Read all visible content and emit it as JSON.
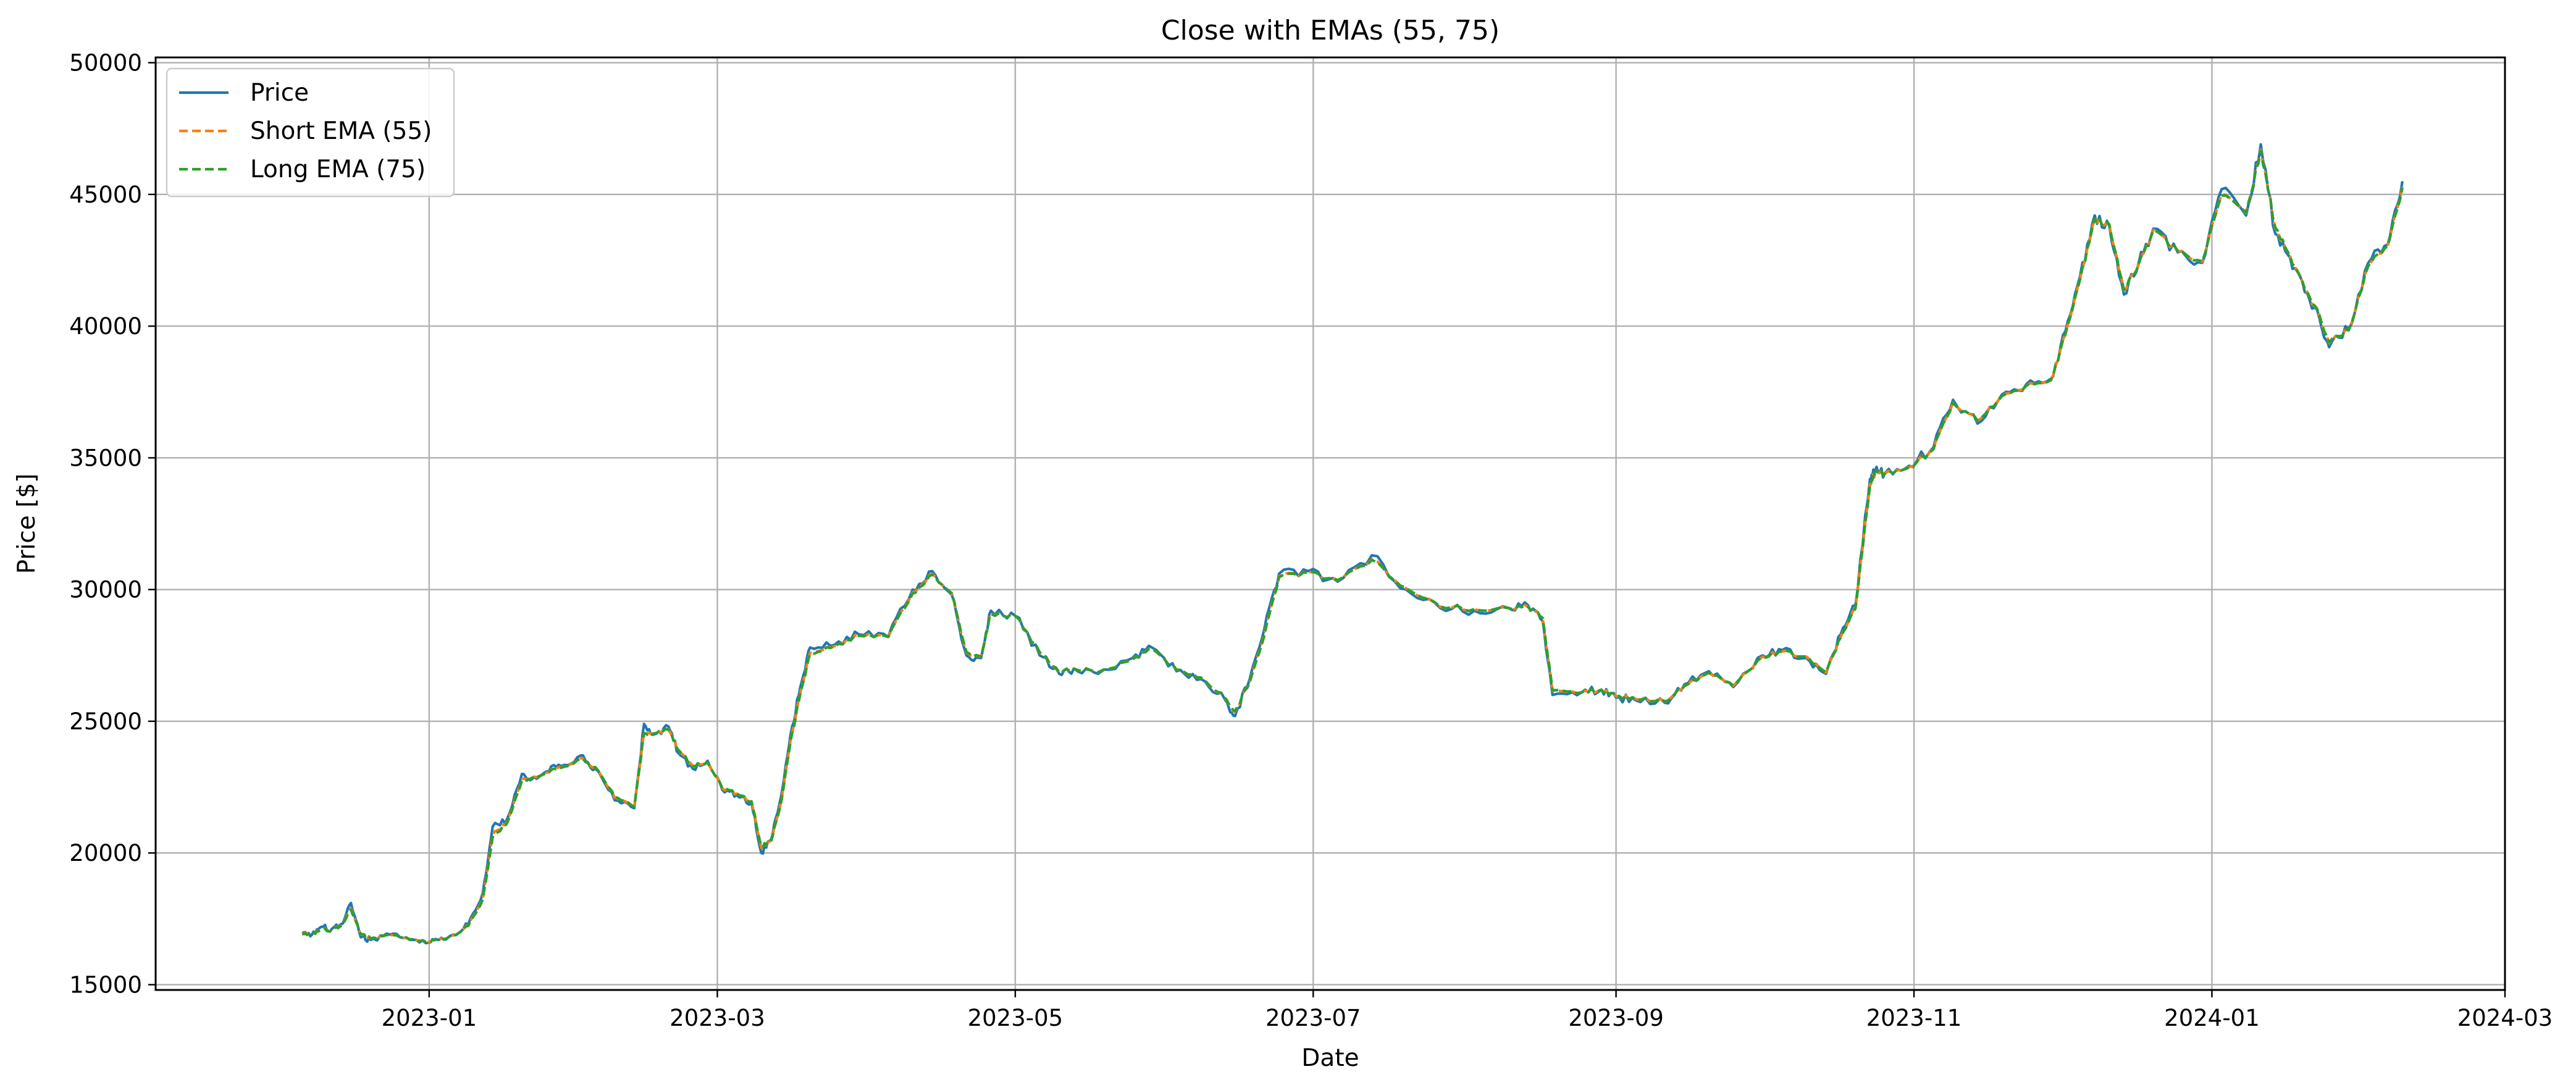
{
  "chart_data": {
    "type": "line",
    "title": "Close with EMAs (55, 75)",
    "xlabel": "Date",
    "ylabel": "Price [$]",
    "x_ticks": [
      "2023-01",
      "2023-03",
      "2023-05",
      "2023-07",
      "2023-09",
      "2023-11",
      "2024-01",
      "2024-03"
    ],
    "y_ticks": [
      15000,
      20000,
      25000,
      30000,
      35000,
      40000,
      45000,
      50000
    ],
    "ylim": [
      14800,
      50200
    ],
    "xlim": [
      "2022-11-06",
      "2024-03-01"
    ],
    "grid": true,
    "legend_position": "top-left",
    "colors": {
      "price": "#1f77b4",
      "short_ema": "#ff7f0e",
      "long_ema": "#2ca02c",
      "grid": "#b0b0b0"
    },
    "x": [
      "2022-12-06",
      "2022-12-08",
      "2022-12-10",
      "2022-12-12",
      "2022-12-14",
      "2022-12-16",
      "2022-12-18",
      "2022-12-20",
      "2022-12-24",
      "2022-12-28",
      "2023-01-01",
      "2023-01-03",
      "2023-01-06",
      "2023-01-09",
      "2023-01-12",
      "2023-01-14",
      "2023-01-17",
      "2023-01-20",
      "2023-01-22",
      "2023-01-25",
      "2023-01-28",
      "2023-02-01",
      "2023-02-04",
      "2023-02-08",
      "2023-02-12",
      "2023-02-14",
      "2023-02-16",
      "2023-02-19",
      "2023-02-21",
      "2023-02-24",
      "2023-02-27",
      "2023-03-02",
      "2023-03-05",
      "2023-03-08",
      "2023-03-10",
      "2023-03-12",
      "2023-03-14",
      "2023-03-16",
      "2023-03-18",
      "2023-03-20",
      "2023-03-25",
      "2023-03-30",
      "2023-04-05",
      "2023-04-10",
      "2023-04-14",
      "2023-04-18",
      "2023-04-21",
      "2023-04-24",
      "2023-04-26",
      "2023-05-01",
      "2023-05-06",
      "2023-05-10",
      "2023-05-13",
      "2023-05-18",
      "2023-05-25",
      "2023-05-29",
      "2023-06-03",
      "2023-06-08",
      "2023-06-13",
      "2023-06-15",
      "2023-06-18",
      "2023-06-21",
      "2023-06-24",
      "2023-06-30",
      "2023-07-06",
      "2023-07-13",
      "2023-07-20",
      "2023-07-27",
      "2023-08-03",
      "2023-08-10",
      "2023-08-14",
      "2023-08-17",
      "2023-08-19",
      "2023-08-25",
      "2023-08-29",
      "2023-09-01",
      "2023-09-05",
      "2023-09-11",
      "2023-09-15",
      "2023-09-20",
      "2023-09-25",
      "2023-10-01",
      "2023-10-05",
      "2023-10-10",
      "2023-10-14",
      "2023-10-17",
      "2023-10-20",
      "2023-10-23",
      "2023-10-24",
      "2023-10-26",
      "2023-10-31",
      "2023-11-05",
      "2023-11-09",
      "2023-11-14",
      "2023-11-19",
      "2023-11-24",
      "2023-11-29",
      "2023-12-02",
      "2023-12-05",
      "2023-12-08",
      "2023-12-11",
      "2023-12-14",
      "2023-12-17",
      "2023-12-20",
      "2023-12-25",
      "2023-12-30",
      "2024-01-03",
      "2024-01-08",
      "2024-01-11",
      "2024-01-14",
      "2024-01-17",
      "2024-01-20",
      "2024-01-23",
      "2024-01-25",
      "2024-01-29",
      "2024-02-02",
      "2024-02-06",
      "2024-02-09"
    ],
    "series": [
      {
        "name": "Price",
        "style": "solid",
        "values": [
          17000,
          16900,
          17200,
          17100,
          17300,
          18100,
          16800,
          16700,
          16900,
          16700,
          16600,
          16700,
          16900,
          17300,
          18500,
          21000,
          21300,
          23000,
          22800,
          23100,
          23300,
          23700,
          23200,
          22000,
          21700,
          24900,
          24500,
          24800,
          23800,
          23200,
          23500,
          22400,
          22200,
          21900,
          20000,
          20500,
          22100,
          24500,
          26300,
          27800,
          27900,
          28300,
          28200,
          30000,
          30700,
          29800,
          27500,
          27400,
          29200,
          29000,
          27500,
          26800,
          27000,
          26800,
          27400,
          27800,
          26900,
          26600,
          25800,
          25200,
          26600,
          28500,
          30600,
          30700,
          30300,
          31300,
          30000,
          29300,
          29200,
          29300,
          29400,
          28800,
          26000,
          26100,
          26200,
          25900,
          25800,
          25700,
          26400,
          26900,
          26300,
          27500,
          27700,
          27400,
          26800,
          28300,
          29400,
          34200,
          34500,
          34400,
          34700,
          35400,
          37200,
          36300,
          37400,
          37800,
          38000,
          39800,
          41900,
          44200,
          43800,
          41200,
          42400,
          43700,
          42800,
          42400,
          45200,
          44200,
          46900,
          43500,
          42600,
          41300,
          40300,
          39200,
          39900,
          42400,
          43100,
          45500
        ]
      },
      {
        "name": "Short EMA (55)",
        "style": "dashed",
        "values": [
          16950,
          16920,
          17100,
          17080,
          17250,
          17900,
          16900,
          16750,
          16880,
          16720,
          16620,
          16700,
          16880,
          17250,
          18300,
          20700,
          21200,
          22800,
          22850,
          23050,
          23250,
          23600,
          23250,
          22100,
          21750,
          24600,
          24550,
          24700,
          23900,
          23300,
          23450,
          22450,
          22250,
          21950,
          20200,
          20450,
          21900,
          24300,
          26100,
          27600,
          27850,
          28250,
          28200,
          29900,
          30600,
          29850,
          27600,
          27450,
          29100,
          29000,
          27600,
          26850,
          27000,
          26850,
          27350,
          27750,
          26950,
          26650,
          25850,
          25350,
          26500,
          28300,
          30500,
          30650,
          30350,
          31150,
          30050,
          29350,
          29250,
          29300,
          29350,
          28900,
          26150,
          26100,
          26200,
          25950,
          25850,
          25750,
          26350,
          26850,
          26350,
          27450,
          27650,
          27450,
          26850,
          28200,
          29300,
          34000,
          34450,
          34400,
          34650,
          35350,
          37100,
          36400,
          37350,
          37750,
          37950,
          39700,
          41800,
          44100,
          43850,
          41350,
          42350,
          43650,
          42850,
          42450,
          45000,
          44300,
          46700,
          43700,
          42650,
          41400,
          40400,
          39350,
          39850,
          42300,
          43050,
          45300
        ]
      },
      {
        "name": "Long EMA (75)",
        "style": "dashed",
        "values": [
          16930,
          16910,
          17080,
          17070,
          17230,
          17850,
          16920,
          16760,
          16870,
          16730,
          16630,
          16700,
          16870,
          17230,
          18250,
          20600,
          21150,
          22750,
          22850,
          23030,
          23230,
          23580,
          23260,
          22130,
          21760,
          24550,
          24540,
          24680,
          23920,
          23310,
          23440,
          22470,
          22260,
          21960,
          20250,
          20440,
          21850,
          24250,
          26050,
          27550,
          27840,
          28240,
          28200,
          29850,
          30570,
          29860,
          27630,
          27460,
          29080,
          29000,
          27620,
          26860,
          27000,
          26860,
          27340,
          27740,
          26960,
          26660,
          25870,
          25380,
          26470,
          28250,
          30470,
          30640,
          30360,
          31120,
          30060,
          29360,
          29260,
          29300,
          29340,
          28920,
          26180,
          26100,
          26200,
          25960,
          25860,
          25760,
          26340,
          26840,
          26360,
          27430,
          27640,
          27460,
          26860,
          28170,
          29270,
          33950,
          34440,
          34400,
          34640,
          35330,
          37080,
          36420,
          37340,
          37740,
          37940,
          39680,
          41770,
          44070,
          43860,
          41380,
          42330,
          43640,
          42860,
          42460,
          44960,
          44320,
          46650,
          43740,
          42660,
          41420,
          40420,
          39380,
          39840,
          42280,
          43040,
          45250
        ]
      }
    ]
  }
}
